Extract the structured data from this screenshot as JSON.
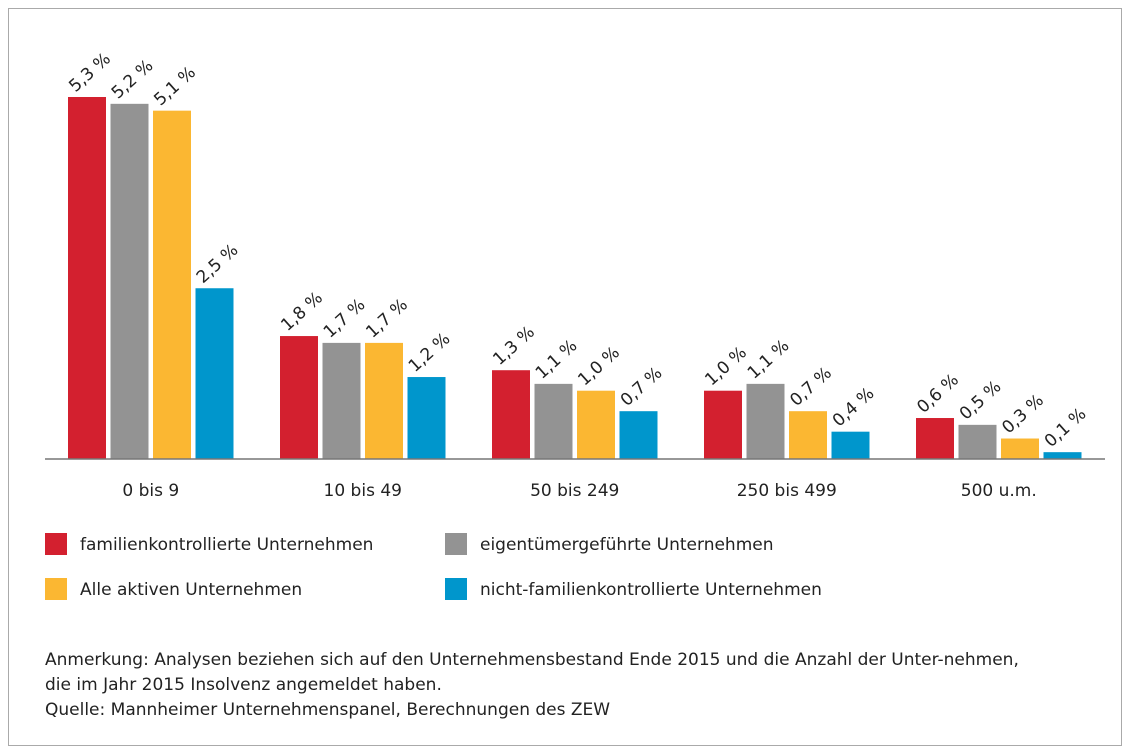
{
  "chart_data": {
    "type": "bar",
    "categories": [
      "0 bis 9",
      "10 bis 49",
      "50 bis 249",
      "250 bis 499",
      "500 u.m."
    ],
    "series": [
      {
        "name": "familienkontrollierte Unternehmen",
        "color": "#d3202f",
        "values": [
          5.3,
          1.8,
          1.3,
          1.0,
          0.6
        ],
        "value_labels": [
          "5,3 %",
          "1,8 %",
          "1,3 %",
          "1,0 %",
          "0,6 %"
        ]
      },
      {
        "name": "eigentümergeführte Unternehmen",
        "color": "#939393",
        "values": [
          5.2,
          1.7,
          1.1,
          1.1,
          0.5
        ],
        "value_labels": [
          "5,2 %",
          "1,7 %",
          "1,1 %",
          "1,1 %",
          "0,5 %"
        ]
      },
      {
        "name": "Alle aktiven Unternehmen",
        "color": "#fbb732",
        "values": [
          5.1,
          1.7,
          1.0,
          0.7,
          0.3
        ],
        "value_labels": [
          "5,1 %",
          "1,7 %",
          "1,0 %",
          "0,7 %",
          "0,3 %"
        ]
      },
      {
        "name": "nicht-familienkontrollierte Unternehmen",
        "color": "#0096cc",
        "values": [
          2.5,
          1.2,
          0.7,
          0.4,
          0.1
        ],
        "value_labels": [
          "2,5 %",
          "1,2 %",
          "0,7 %",
          "0,4 %",
          "0,1 %"
        ]
      }
    ],
    "notes": [
      "Anmerkung: Analysen beziehen sich auf den Unternehmensbestand Ende 2015 und die Anzahl der Unter-nehmen,",
      "die im Jahr 2015 Insolvenz angemeldet haben.",
      "Quelle: Mannheimer Unternehmenspanel, Berechnungen des ZEW"
    ]
  }
}
